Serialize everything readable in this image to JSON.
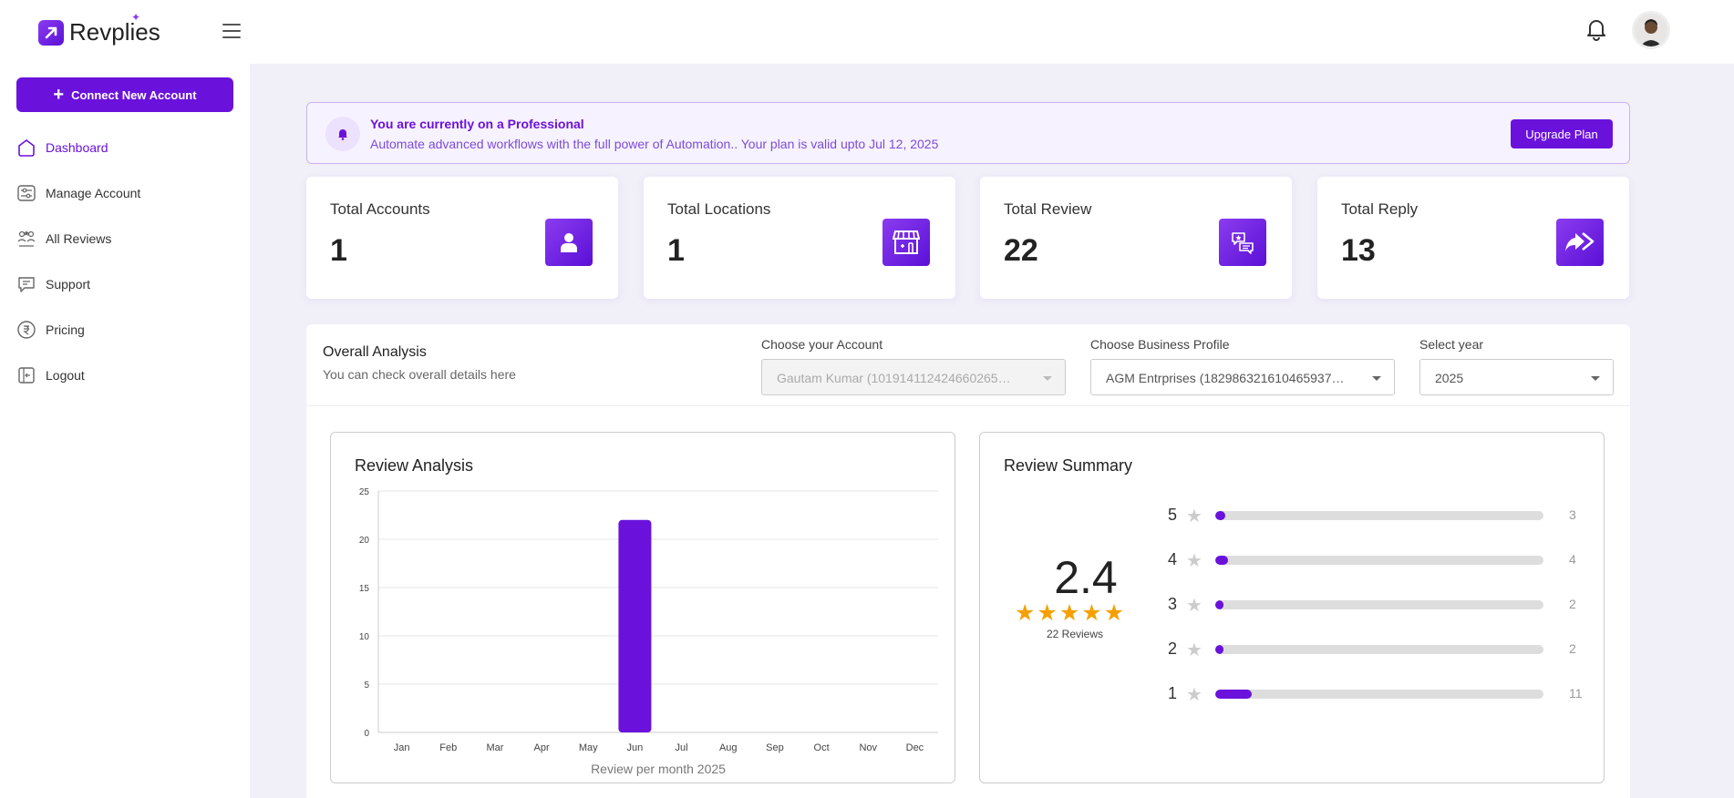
{
  "app": {
    "name": "Revplies"
  },
  "sidebar": {
    "connect_label": "Connect New Account",
    "items": [
      {
        "label": "Dashboard",
        "icon": "home-icon",
        "active": true
      },
      {
        "label": "Manage Account",
        "icon": "sliders-icon",
        "active": false
      },
      {
        "label": "All Reviews",
        "icon": "reviews-icon",
        "active": false
      },
      {
        "label": "Support",
        "icon": "chat-icon",
        "active": false
      },
      {
        "label": "Pricing",
        "icon": "rupee-icon",
        "active": false
      },
      {
        "label": "Logout",
        "icon": "logout-icon",
        "active": false
      }
    ]
  },
  "banner": {
    "title": "You are currently on a Professional",
    "subtitle": "Automate advanced workflows with the full power of Automation.. Your plan is valid upto Jul 12, 2025",
    "button": "Upgrade Plan"
  },
  "stats": [
    {
      "label": "Total Accounts",
      "value": "1",
      "icon": "user-icon"
    },
    {
      "label": "Total Locations",
      "value": "1",
      "icon": "store-icon"
    },
    {
      "label": "Total Review",
      "value": "22",
      "icon": "review-chat-icon"
    },
    {
      "label": "Total Reply",
      "value": "13",
      "icon": "reply-arrow-icon"
    }
  ],
  "analysis": {
    "title": "Overall Analysis",
    "subtitle": "You can check overall details here",
    "account_label": "Choose your Account",
    "account_value": "Gautam Kumar (101914112424660265…",
    "profile_label": "Choose Business Profile",
    "profile_value": "AGM Entrprises (182986321610465937…",
    "year_label": "Select year",
    "year_value": "2025"
  },
  "review_analysis": {
    "title": "Review Analysis"
  },
  "chart_data": {
    "type": "bar",
    "categories": [
      "Jan",
      "Feb",
      "Mar",
      "Apr",
      "May",
      "Jun",
      "Jul",
      "Aug",
      "Sep",
      "Oct",
      "Nov",
      "Dec"
    ],
    "values": [
      0,
      0,
      0,
      0,
      0,
      22,
      0,
      0,
      0,
      0,
      0,
      0
    ],
    "yticks": [
      "0",
      "5",
      "10",
      "15",
      "20",
      "25"
    ],
    "ylim": [
      0,
      25
    ],
    "xlabel": "Review per month 2025",
    "ylabel": "",
    "grid": true,
    "bar_color": "#6a12db"
  },
  "review_summary": {
    "title": "Review Summary",
    "rating": "2.4",
    "reviews_text": "22 Reviews",
    "rows": [
      {
        "stars": "5",
        "count": "3",
        "fraction": 0.03
      },
      {
        "stars": "4",
        "count": "4",
        "fraction": 0.04
      },
      {
        "stars": "3",
        "count": "2",
        "fraction": 0.02
      },
      {
        "stars": "2",
        "count": "2",
        "fraction": 0.02
      },
      {
        "stars": "1",
        "count": "11",
        "fraction": 0.11
      }
    ]
  }
}
